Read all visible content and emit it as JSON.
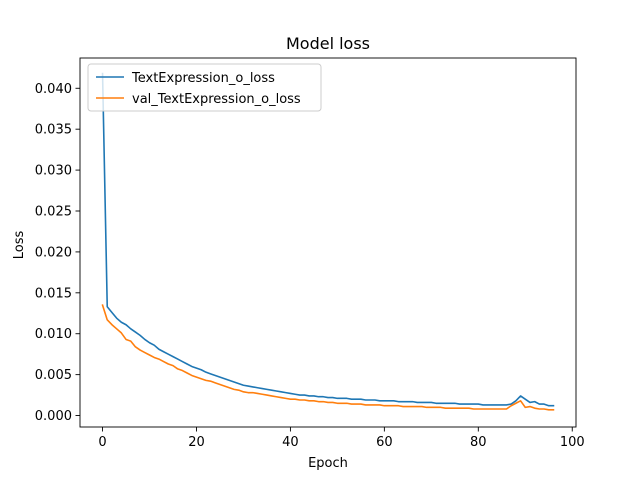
{
  "chart_data": {
    "type": "line",
    "title": "Model loss",
    "xlabel": "Epoch",
    "ylabel": "Loss",
    "xlim": [
      -4.8,
      100.8
    ],
    "ylim": [
      -0.0014,
      0.0437
    ],
    "xticks": [
      0,
      20,
      40,
      60,
      80,
      100
    ],
    "xtick_labels": [
      "0",
      "20",
      "40",
      "60",
      "80",
      "100"
    ],
    "yticks": [
      0.0,
      0.005,
      0.01,
      0.015,
      0.02,
      0.025,
      0.03,
      0.035,
      0.04
    ],
    "ytick_labels": [
      "0.000",
      "0.005",
      "0.010",
      "0.015",
      "0.020",
      "0.025",
      "0.030",
      "0.035",
      "0.040"
    ],
    "grid": false,
    "legend_position": "top-left",
    "series": [
      {
        "name": "TextExpression_o_loss",
        "color": "#1f77b4",
        "values": [
          0.0418,
          0.0133,
          0.0126,
          0.0119,
          0.0114,
          0.0111,
          0.0106,
          0.0102,
          0.0098,
          0.0093,
          0.0089,
          0.0086,
          0.0081,
          0.0078,
          0.0075,
          0.0072,
          0.0069,
          0.0066,
          0.0063,
          0.006,
          0.0058,
          0.0056,
          0.0053,
          0.0051,
          0.0049,
          0.0047,
          0.0045,
          0.0043,
          0.0041,
          0.0039,
          0.0037,
          0.0036,
          0.0035,
          0.0034,
          0.0033,
          0.0032,
          0.0031,
          0.003,
          0.0029,
          0.0028,
          0.0027,
          0.0026,
          0.0025,
          0.0025,
          0.0024,
          0.0024,
          0.0023,
          0.0023,
          0.0022,
          0.0022,
          0.0021,
          0.0021,
          0.0021,
          0.002,
          0.002,
          0.002,
          0.0019,
          0.0019,
          0.0019,
          0.0018,
          0.0018,
          0.0018,
          0.0018,
          0.0017,
          0.0017,
          0.0017,
          0.0017,
          0.0016,
          0.0016,
          0.0016,
          0.0016,
          0.0015,
          0.0015,
          0.0015,
          0.0015,
          0.0015,
          0.0014,
          0.0014,
          0.0014,
          0.0014,
          0.0014,
          0.0013,
          0.0013,
          0.0013,
          0.0013,
          0.0013,
          0.0013,
          0.0014,
          0.0018,
          0.0024,
          0.002,
          0.0016,
          0.0017,
          0.0014,
          0.0014,
          0.0012,
          0.0012
        ]
      },
      {
        "name": "val_TextExpression_o_loss",
        "color": "#ff7f0e",
        "values": [
          0.0135,
          0.0117,
          0.0111,
          0.0106,
          0.0101,
          0.0093,
          0.0091,
          0.0084,
          0.008,
          0.0077,
          0.0074,
          0.0071,
          0.0069,
          0.0066,
          0.0063,
          0.0061,
          0.0057,
          0.0055,
          0.0052,
          0.0049,
          0.0047,
          0.0045,
          0.0043,
          0.0042,
          0.004,
          0.0038,
          0.0036,
          0.0034,
          0.0032,
          0.0031,
          0.0029,
          0.0028,
          0.0028,
          0.0027,
          0.0026,
          0.0025,
          0.0024,
          0.0023,
          0.0022,
          0.0021,
          0.002,
          0.002,
          0.0019,
          0.0019,
          0.0018,
          0.0018,
          0.0017,
          0.0017,
          0.0016,
          0.0016,
          0.0015,
          0.0015,
          0.0015,
          0.0014,
          0.0014,
          0.0014,
          0.0013,
          0.0013,
          0.0013,
          0.0013,
          0.0012,
          0.0012,
          0.0012,
          0.0012,
          0.0011,
          0.0011,
          0.0011,
          0.0011,
          0.0011,
          0.001,
          0.001,
          0.001,
          0.001,
          0.0009,
          0.0009,
          0.0009,
          0.0009,
          0.0009,
          0.0009,
          0.0008,
          0.0008,
          0.0008,
          0.0008,
          0.0008,
          0.0008,
          0.0008,
          0.0008,
          0.0012,
          0.0015,
          0.0018,
          0.001,
          0.0011,
          0.0009,
          0.0008,
          0.0008,
          0.0007,
          0.0007
        ]
      }
    ]
  }
}
